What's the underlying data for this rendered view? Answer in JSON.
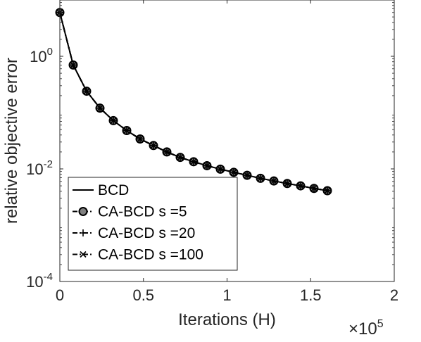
{
  "chart_data": {
    "type": "line",
    "title": "",
    "xlabel": "Iterations (H)",
    "ylabel": "relative objective error",
    "x_multiplier": "×10",
    "x_multiplier_exponent": "5",
    "xlim": [
      0,
      2
    ],
    "ylim": [
      0.0001,
      10
    ],
    "y_scale": "log",
    "grid": false,
    "legend_position": "bottom-left",
    "x_ticks": [
      {
        "value": 0,
        "label": "0"
      },
      {
        "value": 0.5,
        "label": "0.5"
      },
      {
        "value": 1,
        "label": "1"
      },
      {
        "value": 1.5,
        "label": "1.5"
      },
      {
        "value": 2,
        "label": "2"
      }
    ],
    "y_ticks": [
      {
        "value": 1,
        "base": "10",
        "exp": "0"
      },
      {
        "value": 0.01,
        "base": "10",
        "exp": "-2"
      },
      {
        "value": 0.0001,
        "base": "10",
        "exp": "-4"
      }
    ],
    "x": [
      0,
      0.08,
      0.16,
      0.24,
      0.32,
      0.4,
      0.48,
      0.56,
      0.64,
      0.72,
      0.8,
      0.88,
      0.96,
      1.04,
      1.12,
      1.2,
      1.28,
      1.36,
      1.44,
      1.52,
      1.6
    ],
    "series": [
      {
        "name": "BCD",
        "marker": "none",
        "line": "solid",
        "values": [
          6.0,
          0.7,
          0.24,
          0.12,
          0.072,
          0.048,
          0.034,
          0.026,
          0.02,
          0.016,
          0.0134,
          0.0114,
          0.0099,
          0.0087,
          0.0077,
          0.0068,
          0.0061,
          0.0055,
          0.005,
          0.0045,
          0.0041
        ]
      },
      {
        "name": "CA-BCD s =5",
        "marker": "circle",
        "line": "dash-dot",
        "values": [
          6.0,
          0.7,
          0.24,
          0.12,
          0.072,
          0.048,
          0.034,
          0.026,
          0.02,
          0.016,
          0.0134,
          0.0114,
          0.0099,
          0.0087,
          0.0077,
          0.0068,
          0.0061,
          0.0055,
          0.005,
          0.0045,
          0.0041
        ]
      },
      {
        "name": "CA-BCD s =20",
        "marker": "plus",
        "line": "dash-dot",
        "values": [
          6.0,
          0.7,
          0.24,
          0.12,
          0.072,
          0.048,
          0.034,
          0.026,
          0.02,
          0.016,
          0.0134,
          0.0114,
          0.0099,
          0.0087,
          0.0077,
          0.0068,
          0.0061,
          0.0055,
          0.005,
          0.0045,
          0.0041
        ]
      },
      {
        "name": "CA-BCD s =100",
        "marker": "x",
        "line": "dash-dot",
        "values": [
          6.0,
          0.7,
          0.24,
          0.12,
          0.072,
          0.048,
          0.034,
          0.026,
          0.02,
          0.016,
          0.0134,
          0.0114,
          0.0099,
          0.0087,
          0.0077,
          0.0068,
          0.0061,
          0.0055,
          0.005,
          0.0045,
          0.0041
        ]
      }
    ],
    "colors": {
      "line": "#000000",
      "marker_fill": "#808080",
      "axis": "#262626"
    }
  }
}
